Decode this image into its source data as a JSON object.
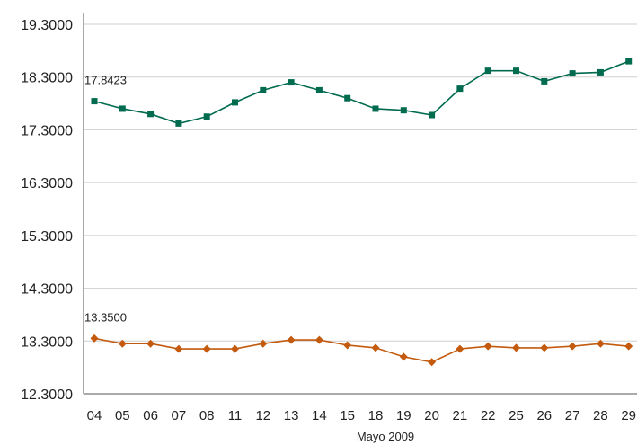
{
  "chart_data": {
    "type": "line",
    "xlabel": "Mayo 2009",
    "ylim": [
      12.3,
      19.3
    ],
    "yticks": [
      "12.3000",
      "13.3000",
      "14.3000",
      "15.3000",
      "16.3000",
      "17.3000",
      "18.3000",
      "19.3000"
    ],
    "categories": [
      "04",
      "05",
      "06",
      "07",
      "08",
      "11",
      "12",
      "13",
      "14",
      "15",
      "18",
      "19",
      "20",
      "21",
      "22",
      "25",
      "26",
      "27",
      "28",
      "29"
    ],
    "grid": true,
    "series": [
      {
        "color": "#006b4f",
        "marker": "square",
        "values": [
          17.8423,
          17.7,
          17.6,
          17.42,
          17.55,
          17.82,
          18.05,
          18.2,
          18.05,
          17.9,
          17.7,
          17.67,
          17.58,
          18.08,
          18.42,
          18.42,
          18.22,
          18.37,
          18.39,
          18.6
        ],
        "data_label": "17.8423"
      },
      {
        "color": "#c35a0e",
        "marker": "diamond",
        "values": [
          13.35,
          13.25,
          13.25,
          13.15,
          13.15,
          13.15,
          13.25,
          13.32,
          13.32,
          13.22,
          13.17,
          13.0,
          12.9,
          13.15,
          13.2,
          13.17,
          13.17,
          13.2,
          13.25,
          13.2
        ],
        "data_label": "13.3500"
      }
    ]
  }
}
